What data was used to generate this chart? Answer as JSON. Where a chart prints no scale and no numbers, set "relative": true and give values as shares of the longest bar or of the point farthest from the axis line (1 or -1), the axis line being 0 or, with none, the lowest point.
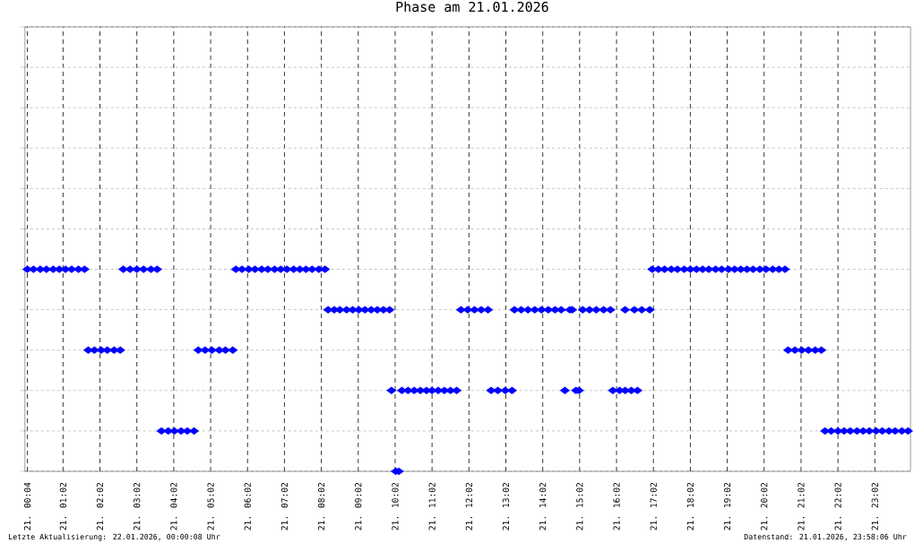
{
  "chart_data": {
    "type": "scatter",
    "title": "Phase am 21.01.2026",
    "relative": true,
    "marker": "diamond",
    "color": "#0000ff",
    "grid": true,
    "xlim": [
      "2026-01-21T00:00",
      "2026-01-22T00:00"
    ],
    "xticks": [
      {
        "value": "2026-01-21T00:04",
        "label": "21. 00:04"
      },
      {
        "value": "2026-01-21T01:02",
        "label": "21. 01:02"
      },
      {
        "value": "2026-01-21T02:02",
        "label": "21. 02:02"
      },
      {
        "value": "2026-01-21T03:02",
        "label": "21. 03:02"
      },
      {
        "value": "2026-01-21T04:02",
        "label": "21. 04:02"
      },
      {
        "value": "2026-01-21T05:02",
        "label": "21. 05:02"
      },
      {
        "value": "2026-01-21T06:02",
        "label": "21. 06:02"
      },
      {
        "value": "2026-01-21T07:02",
        "label": "21. 07:02"
      },
      {
        "value": "2026-01-21T08:02",
        "label": "21. 08:02"
      },
      {
        "value": "2026-01-21T09:02",
        "label": "21. 09:02"
      },
      {
        "value": "2026-01-21T10:02",
        "label": "21. 10:02"
      },
      {
        "value": "2026-01-21T11:02",
        "label": "21. 11:02"
      },
      {
        "value": "2026-01-21T12:02",
        "label": "21. 12:02"
      },
      {
        "value": "2026-01-21T13:02",
        "label": "21. 13:02"
      },
      {
        "value": "2026-01-21T14:02",
        "label": "21. 14:02"
      },
      {
        "value": "2026-01-21T15:02",
        "label": "21. 15:02"
      },
      {
        "value": "2026-01-21T16:02",
        "label": "21. 16:02"
      },
      {
        "value": "2026-01-21T17:02",
        "label": "21. 17:02"
      },
      {
        "value": "2026-01-21T18:02",
        "label": "21. 18:02"
      },
      {
        "value": "2026-01-21T19:02",
        "label": "21. 19:02"
      },
      {
        "value": "2026-01-21T20:02",
        "label": "21. 20:02"
      },
      {
        "value": "2026-01-21T21:02",
        "label": "21. 21:02"
      },
      {
        "value": "2026-01-21T22:02",
        "label": "21. 22:02"
      },
      {
        "value": "2026-01-21T23:02",
        "label": "21. 23:02"
      }
    ],
    "x": [
      "2026-01-21T00:04",
      "2026-01-21T00:14",
      "2026-01-21T00:25",
      "2026-01-21T00:35",
      "2026-01-21T00:46",
      "2026-01-21T00:56",
      "2026-01-21T01:06",
      "2026-01-21T01:16",
      "2026-01-21T01:27",
      "2026-01-21T01:37",
      "2026-01-21T01:43",
      "2026-01-21T01:53",
      "2026-01-21T02:04",
      "2026-01-21T02:14",
      "2026-01-21T02:25",
      "2026-01-21T02:35",
      "2026-01-21T02:40",
      "2026-01-21T02:51",
      "2026-01-21T03:02",
      "2026-01-21T03:13",
      "2026-01-21T03:25",
      "2026-01-21T03:35",
      "2026-01-21T03:42",
      "2026-01-21T03:53",
      "2026-01-21T04:03",
      "2026-01-21T04:14",
      "2026-01-21T04:24",
      "2026-01-21T04:35",
      "2026-01-21T04:42",
      "2026-01-21T04:53",
      "2026-01-21T05:04",
      "2026-01-21T05:16",
      "2026-01-21T05:26",
      "2026-01-21T05:38",
      "2026-01-21T05:43",
      "2026-01-21T05:53",
      "2026-01-21T06:04",
      "2026-01-21T06:14",
      "2026-01-21T06:25",
      "2026-01-21T06:35",
      "2026-01-21T06:46",
      "2026-01-21T06:56",
      "2026-01-21T07:06",
      "2026-01-21T07:17",
      "2026-01-21T07:27",
      "2026-01-21T07:37",
      "2026-01-21T07:47",
      "2026-01-21T07:58",
      "2026-01-21T08:08",
      "2026-01-21T08:13",
      "2026-01-21T08:23",
      "2026-01-21T08:32",
      "2026-01-21T08:43",
      "2026-01-21T08:53",
      "2026-01-21T09:03",
      "2026-01-21T09:13",
      "2026-01-21T09:23",
      "2026-01-21T09:33",
      "2026-01-21T09:43",
      "2026-01-21T09:53",
      "2026-01-21T09:56",
      "2026-01-21T10:03",
      "2026-01-21T10:08",
      "2026-01-21T10:13",
      "2026-01-21T10:23",
      "2026-01-21T10:33",
      "2026-01-21T10:43",
      "2026-01-21T10:53",
      "2026-01-21T11:02",
      "2026-01-21T11:12",
      "2026-01-21T11:22",
      "2026-01-21T11:32",
      "2026-01-21T11:42",
      "2026-01-21T11:49",
      "2026-01-21T12:00",
      "2026-01-21T12:11",
      "2026-01-21T12:22",
      "2026-01-21T12:33",
      "2026-01-21T12:38",
      "2026-01-21T12:49",
      "2026-01-21T13:01",
      "2026-01-21T13:12",
      "2026-01-21T13:16",
      "2026-01-21T13:27",
      "2026-01-21T13:38",
      "2026-01-21T13:49",
      "2026-01-21T14:00",
      "2026-01-21T14:11",
      "2026-01-21T14:22",
      "2026-01-21T14:32",
      "2026-01-21T14:38",
      "2026-01-21T14:46",
      "2026-01-21T14:50",
      "2026-01-21T14:56",
      "2026-01-21T15:01",
      "2026-01-21T15:07",
      "2026-01-21T15:18",
      "2026-01-21T15:29",
      "2026-01-21T15:41",
      "2026-01-21T15:52",
      "2026-01-21T15:56",
      "2026-01-21T16:07",
      "2026-01-21T16:16",
      "2026-01-21T16:16",
      "2026-01-21T16:26",
      "2026-01-21T16:31",
      "2026-01-21T16:36",
      "2026-01-21T16:43",
      "2026-01-21T16:56",
      "2026-01-21T17:00",
      "2026-01-21T17:10",
      "2026-01-21T17:20",
      "2026-01-21T17:31",
      "2026-01-21T17:41",
      "2026-01-21T17:52",
      "2026-01-21T18:02",
      "2026-01-21T18:12",
      "2026-01-21T18:22",
      "2026-01-21T18:32",
      "2026-01-21T18:43",
      "2026-01-21T18:53",
      "2026-01-21T19:04",
      "2026-01-21T19:14",
      "2026-01-21T19:24",
      "2026-01-21T19:34",
      "2026-01-21T19:44",
      "2026-01-21T19:55",
      "2026-01-21T20:05",
      "2026-01-21T20:16",
      "2026-01-21T20:26",
      "2026-01-21T20:36",
      "2026-01-21T20:41",
      "2026-01-21T20:52",
      "2026-01-21T21:03",
      "2026-01-21T21:14",
      "2026-01-21T21:25",
      "2026-01-21T21:35",
      "2026-01-21T21:41",
      "2026-01-21T21:51",
      "2026-01-21T22:02",
      "2026-01-21T22:12",
      "2026-01-21T22:22",
      "2026-01-21T22:33",
      "2026-01-21T22:43",
      "2026-01-21T22:53",
      "2026-01-21T23:04",
      "2026-01-21T23:14",
      "2026-01-21T23:25",
      "2026-01-21T23:35",
      "2026-01-21T23:46",
      "2026-01-21T23:56"
    ],
    "values": [
      1,
      1,
      1,
      1,
      1,
      1,
      1,
      1,
      1,
      1,
      0.6,
      0.6,
      0.6,
      0.6,
      0.6,
      0.6,
      1,
      1,
      1,
      1,
      1,
      1,
      0.2,
      0.2,
      0.2,
      0.2,
      0.2,
      0.2,
      0.6,
      0.6,
      0.6,
      0.6,
      0.6,
      0.6,
      1,
      1,
      1,
      1,
      1,
      1,
      1,
      1,
      1,
      1,
      1,
      1,
      1,
      1,
      1,
      0.8,
      0.8,
      0.8,
      0.8,
      0.8,
      0.8,
      0.8,
      0.8,
      0.8,
      0.8,
      0.8,
      0.4,
      0,
      0,
      0.4,
      0.4,
      0.4,
      0.4,
      0.4,
      0.4,
      0.4,
      0.4,
      0.4,
      0.4,
      0.8,
      0.8,
      0.8,
      0.8,
      0.8,
      0.4,
      0.4,
      0.4,
      0.4,
      0.8,
      0.8,
      0.8,
      0.8,
      0.8,
      0.8,
      0.8,
      0.8,
      0.4,
      0.8,
      0.8,
      0.4,
      0.4,
      0.8,
      0.8,
      0.8,
      0.8,
      0.8,
      0.4,
      0.4,
      0.8,
      0.4,
      0.4,
      0.8,
      0.4,
      0.8,
      0.8,
      1,
      1,
      1,
      1,
      1,
      1,
      1,
      1,
      1,
      1,
      1,
      1,
      1,
      1,
      1,
      1,
      1,
      1,
      1,
      1,
      1,
      1,
      0.6,
      0.6,
      0.6,
      0.6,
      0.6,
      0.6,
      0.2,
      0.2,
      0.2,
      0.2,
      0.2,
      0.2,
      0.2,
      0.2,
      0.2,
      0.2,
      0.2,
      0.2,
      0.2,
      0.2
    ],
    "annotations": [
      "Letzte Aktualisierung: 22.01.2026, 00:00:08 Uhr",
      "Datenstand: 21.01.2026, 23:58:06 Uhr"
    ]
  }
}
